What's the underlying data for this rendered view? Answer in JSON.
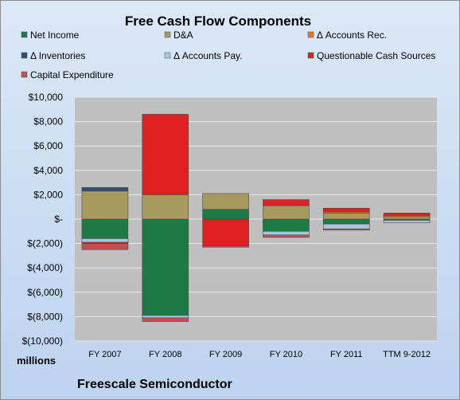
{
  "chart_data": {
    "type": "bar",
    "stacked": true,
    "title": "Free Cash Flow Components",
    "units_label": "millions",
    "company": "Freescale Semiconductor",
    "categories": [
      "FY 2007",
      "FY 2008",
      "FY 2009",
      "FY 2010",
      "FY 2011",
      "TTM 9-2012"
    ],
    "ylim": [
      -10000,
      10000
    ],
    "yticks": [
      10000,
      8000,
      6000,
      4000,
      2000,
      0,
      -2000,
      -4000,
      -6000,
      -8000,
      -10000
    ],
    "ytick_labels": [
      "$10,000",
      "$8,000",
      "$6,000",
      "$4,000",
      "$2,000",
      "$-",
      "$(2,000)",
      "$(4,000)",
      "$(6,000)",
      "$(8,000)",
      "$(10,000)"
    ],
    "grid": true,
    "legend_position": "top",
    "series": [
      {
        "name": "Net Income",
        "color": "#1e7a44",
        "values": [
          -1600,
          -7900,
          800,
          -1000,
          -400,
          -100
        ]
      },
      {
        "name": "D&A",
        "color": "#a89a5f",
        "values": [
          2300,
          2000,
          1300,
          1100,
          500,
          200
        ]
      },
      {
        "name": "Δ Accounts Rec.",
        "color": "#e07a1f",
        "values": [
          0,
          0,
          0,
          0,
          100,
          100
        ]
      },
      {
        "name": "Δ Inventories",
        "color": "#34506e",
        "values": [
          300,
          0,
          0,
          0,
          0,
          0
        ]
      },
      {
        "name": "Δ Accounts Pay.",
        "color": "#a9c4e0",
        "values": [
          -300,
          -200,
          0,
          -300,
          -400,
          -200
        ]
      },
      {
        "name": "Questionable Cash Sources",
        "color": "#e02020",
        "values": [
          -100,
          6600,
          -2200,
          500,
          300,
          200
        ]
      },
      {
        "name": "Capital Expenditure",
        "color": "#c2504e",
        "values": [
          -500,
          -300,
          -100,
          -200,
          -100,
          0
        ]
      }
    ]
  }
}
